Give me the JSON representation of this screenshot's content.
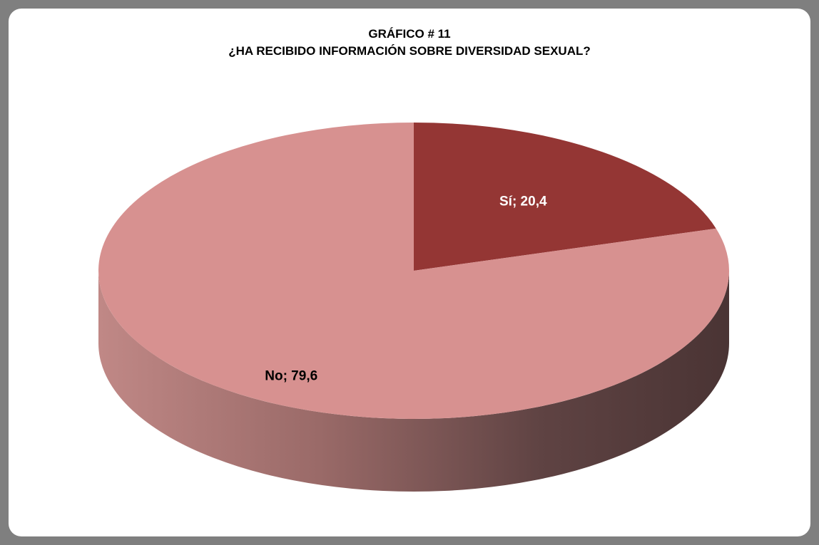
{
  "chart_data": {
    "type": "pie",
    "title": "GRÁFICO # 11",
    "subtitle": "¿HA RECIBIDO INFORMACIÓN SOBRE DIVERSIDAD SEXUAL?",
    "categories": [
      "Sí",
      "No"
    ],
    "values": [
      20.4,
      79.6
    ],
    "colors": [
      "#943634",
      "#d79190"
    ],
    "label_colors": [
      "#ffffff",
      "#000000"
    ],
    "data_labels": [
      "Sí; 20,4",
      "No; 79,6"
    ],
    "style": "3d"
  }
}
